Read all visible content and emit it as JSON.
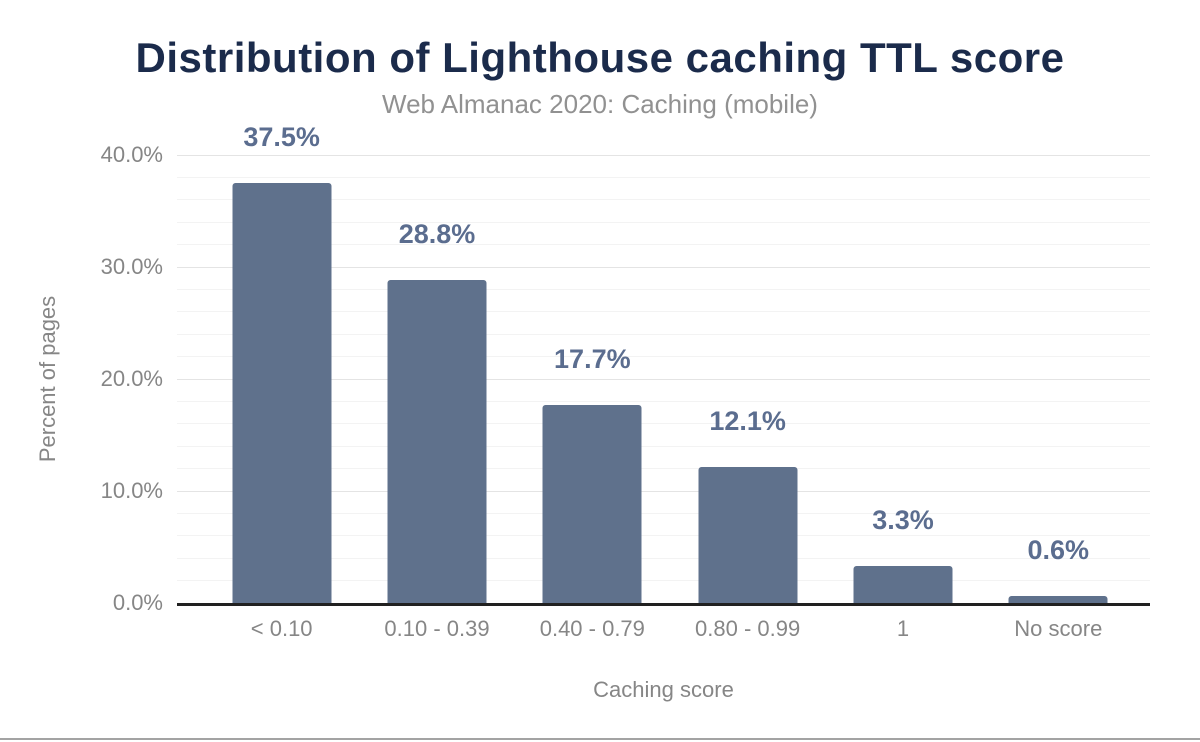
{
  "chart_data": {
    "type": "bar",
    "title": "Distribution of Lighthouse caching TTL score",
    "subtitle": "Web Almanac 2020: Caching (mobile)",
    "xlabel": "Caching score",
    "ylabel": "Percent of pages",
    "categories": [
      "< 0.10",
      "0.10 - 0.39",
      "0.40 - 0.79",
      "0.80 - 0.99",
      "1",
      "No score"
    ],
    "values": [
      37.5,
      28.8,
      17.7,
      12.1,
      3.3,
      0.6
    ],
    "value_labels": [
      "37.5%",
      "28.8%",
      "17.7%",
      "12.1%",
      "3.3%",
      "0.6%"
    ],
    "ylim": [
      0,
      40
    ],
    "yticks": [
      {
        "value": 0,
        "label": "0.0%"
      },
      {
        "value": 10,
        "label": "10.0%"
      },
      {
        "value": 20,
        "label": "20.0%"
      },
      {
        "value": 30,
        "label": "30.0%"
      },
      {
        "value": 40,
        "label": "40.0%"
      }
    ],
    "minor_tick_step": 2,
    "grid": "on",
    "legend": "none",
    "colors": {
      "bar": "#5f718c",
      "data_label": "#5b6d8f",
      "title": "#1b2b4b",
      "subtitle": "#919191",
      "axis_text": "#868686",
      "axis_line": "#212121",
      "major_grid": "#e4e4e4",
      "minor_grid": "#f3f3f3",
      "bottom_divider": "#a3a3a3"
    }
  }
}
